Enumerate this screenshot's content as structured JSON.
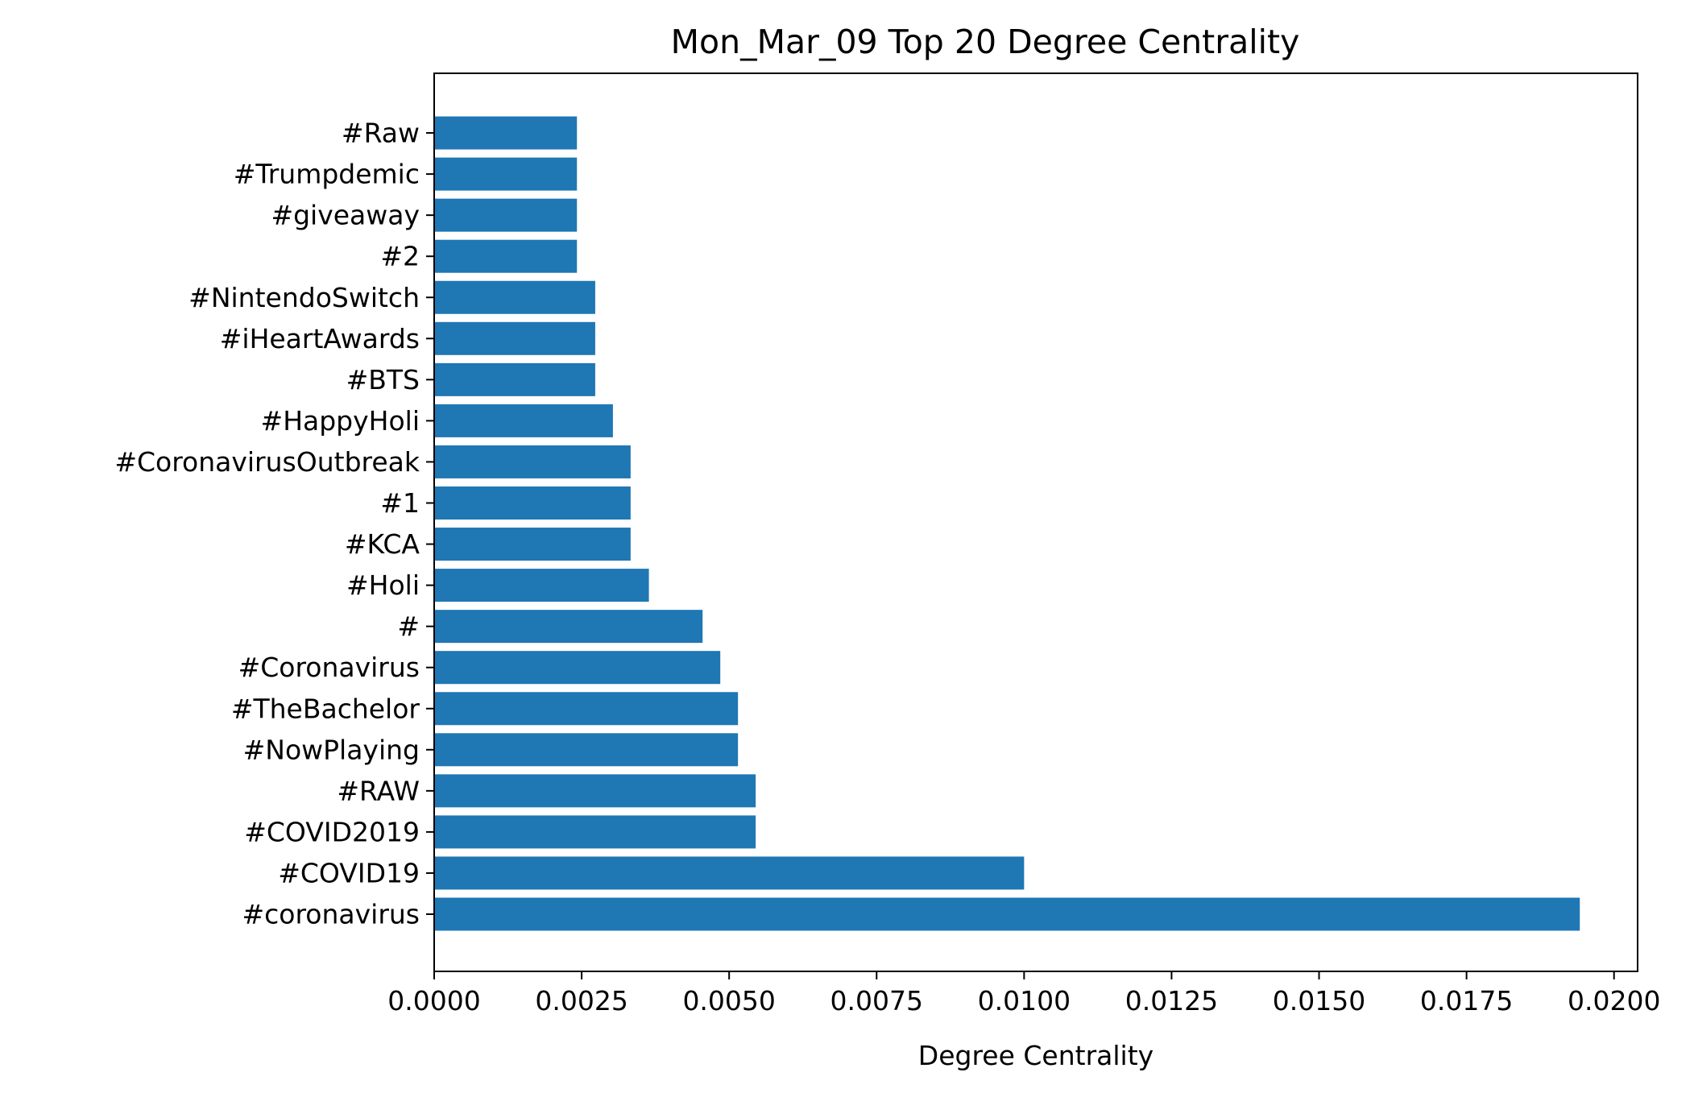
{
  "chart_data": {
    "type": "bar",
    "orientation": "horizontal",
    "title": "Mon_Mar_09 Top 20 Degree Centrality",
    "xlabel": "Degree Centrality",
    "ylabel": "",
    "xlim": [
      0,
      0.0204
    ],
    "xticks": [
      0.0,
      0.0025,
      0.005,
      0.0075,
      0.01,
      0.0125,
      0.015,
      0.0175,
      0.02
    ],
    "xtick_labels": [
      "0.0000",
      "0.0025",
      "0.0050",
      "0.0075",
      "0.0100",
      "0.0125",
      "0.0150",
      "0.0175",
      "0.0200"
    ],
    "grid": false,
    "bar_color": "#1f77b4",
    "categories": [
      "#coronavirus",
      "#COVID19",
      "#COVID2019",
      "#RAW",
      "#NowPlaying",
      "#TheBachelor",
      "#Coronavirus",
      "#",
      "#Holi",
      "#KCA",
      "#1",
      "#CoronavirusOutbreak",
      "#HappyHoli",
      "#BTS",
      "#iHeartAwards",
      "#NintendoSwitch",
      "#2",
      "#giveaway",
      "#Trumpdemic",
      "#Raw"
    ],
    "values": [
      0.01942,
      0.01,
      0.00545,
      0.00545,
      0.00515,
      0.00515,
      0.00485,
      0.00455,
      0.00364,
      0.00333,
      0.00333,
      0.00333,
      0.00303,
      0.00273,
      0.00273,
      0.00273,
      0.00242,
      0.00242,
      0.00242,
      0.00242
    ]
  }
}
